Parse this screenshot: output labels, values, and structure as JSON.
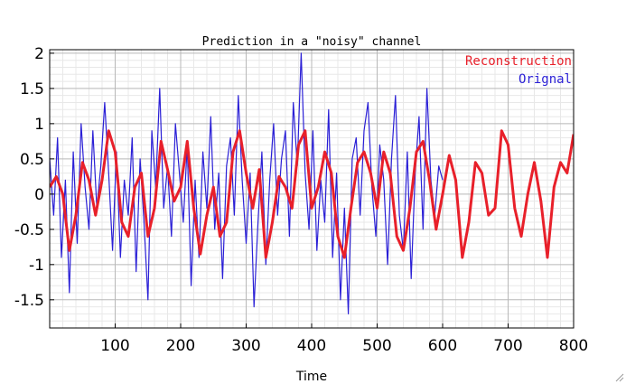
{
  "chart_data": {
    "type": "line",
    "title": "Prediction in a \"noisy\" channel",
    "xlabel": "Time",
    "ylabel": "",
    "xlim": [
      0,
      800
    ],
    "ylim": [
      -1.9,
      2.05
    ],
    "xticks": [
      100,
      200,
      300,
      400,
      500,
      600,
      700,
      800
    ],
    "yticks": [
      -1.5,
      -1,
      -0.5,
      0,
      0.5,
      1,
      1.5,
      2
    ],
    "grid": true,
    "legend_position": "top-right",
    "series": [
      {
        "name": "Reconstruction",
        "color": "#e8202a",
        "x": [
          0,
          10,
          20,
          30,
          40,
          50,
          60,
          70,
          80,
          90,
          100,
          110,
          120,
          130,
          140,
          150,
          160,
          170,
          180,
          190,
          200,
          210,
          220,
          230,
          240,
          250,
          260,
          270,
          280,
          290,
          300,
          310,
          320,
          330,
          340,
          350,
          360,
          370,
          380,
          390,
          400,
          410,
          420,
          430,
          440,
          450,
          460,
          470,
          480,
          490,
          500,
          510,
          520,
          530,
          540,
          550,
          560,
          570,
          580,
          590,
          600,
          610,
          620,
          630,
          640,
          650,
          660,
          670,
          680,
          690,
          700,
          710,
          720,
          730,
          740,
          750,
          760,
          770,
          780,
          790,
          800
        ],
        "y": [
          0.1,
          0.25,
          0.0,
          -0.8,
          -0.3,
          0.45,
          0.2,
          -0.3,
          0.2,
          0.9,
          0.6,
          -0.4,
          -0.6,
          0.1,
          0.3,
          -0.6,
          -0.2,
          0.75,
          0.35,
          -0.1,
          0.1,
          0.75,
          -0.2,
          -0.85,
          -0.3,
          0.1,
          -0.6,
          -0.4,
          0.6,
          0.9,
          0.3,
          -0.2,
          0.35,
          -0.9,
          -0.4,
          0.25,
          0.1,
          -0.2,
          0.7,
          0.9,
          -0.2,
          0.1,
          0.6,
          0.3,
          -0.6,
          -0.9,
          -0.2,
          0.45,
          0.6,
          0.3,
          -0.2,
          0.6,
          0.3,
          -0.6,
          -0.8,
          -0.2,
          0.6,
          0.75,
          0.2,
          -0.5,
          0.0,
          0.55,
          0.2,
          -0.9,
          -0.4,
          0.45,
          0.3,
          -0.3,
          -0.2,
          0.9,
          0.7,
          -0.2,
          -0.6,
          0.0,
          0.45,
          -0.1,
          -0.9,
          0.1,
          0.45,
          0.3,
          0.85
        ]
      },
      {
        "name": "Orignal",
        "color": "#2a1fd6",
        "x": [
          0,
          6,
          12,
          18,
          24,
          30,
          36,
          42,
          48,
          54,
          60,
          66,
          72,
          78,
          84,
          90,
          96,
          102,
          108,
          114,
          120,
          126,
          132,
          138,
          144,
          150,
          156,
          162,
          168,
          174,
          180,
          186,
          192,
          198,
          204,
          210,
          216,
          222,
          228,
          234,
          240,
          246,
          252,
          258,
          264,
          270,
          276,
          282,
          288,
          294,
          300,
          306,
          312,
          318,
          324,
          330,
          336,
          342,
          348,
          354,
          360,
          366,
          372,
          378,
          384,
          390,
          396,
          402,
          408,
          414,
          420,
          426,
          432,
          438,
          444,
          450,
          456,
          462,
          468,
          474,
          480,
          486,
          492,
          498,
          504,
          510,
          516,
          522,
          528,
          534,
          540,
          546,
          552,
          558,
          564,
          570,
          576,
          582,
          588,
          594,
          600
        ],
        "y": [
          0.5,
          -0.3,
          0.8,
          -0.9,
          0.2,
          -1.4,
          0.6,
          -0.7,
          1.0,
          0.1,
          -0.5,
          0.9,
          -0.2,
          0.4,
          1.3,
          0.3,
          -0.8,
          0.6,
          -0.9,
          0.2,
          -0.3,
          0.8,
          -1.1,
          0.5,
          -0.4,
          -1.5,
          0.9,
          0.1,
          1.5,
          -0.2,
          0.4,
          -0.6,
          1.0,
          0.3,
          -0.4,
          0.7,
          -1.3,
          0.2,
          -0.9,
          0.6,
          -0.2,
          1.1,
          -0.5,
          0.3,
          -1.2,
          0.4,
          0.8,
          -0.3,
          1.4,
          0.2,
          -0.7,
          0.3,
          -1.6,
          -0.4,
          0.6,
          -1.0,
          0.2,
          1.0,
          -0.3,
          0.5,
          0.9,
          -0.6,
          1.3,
          0.4,
          2.0,
          0.3,
          -0.5,
          0.9,
          -0.8,
          0.2,
          -0.4,
          1.2,
          -0.9,
          0.3,
          -1.5,
          -0.2,
          -1.7,
          0.5,
          0.8,
          -0.3,
          0.9,
          1.3,
          0.1,
          -0.6,
          0.7,
          0.2,
          -1.0,
          0.5,
          1.4,
          -0.3,
          -0.8,
          0.6,
          -1.2,
          0.3,
          1.1,
          -0.5,
          1.5,
          0.2,
          -0.3,
          0.4,
          0.2
        ]
      }
    ]
  }
}
